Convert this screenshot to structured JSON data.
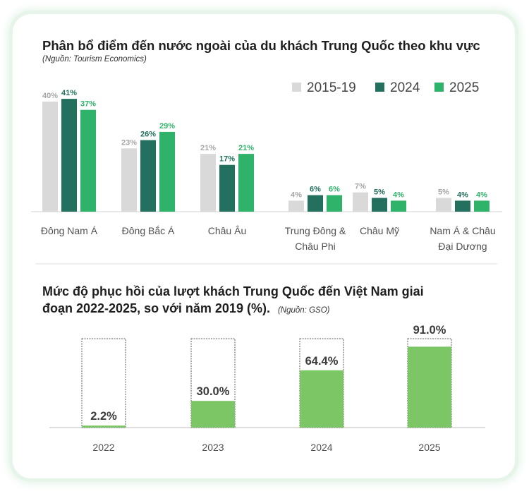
{
  "chart_data": [
    {
      "type": "bar",
      "title": "Phân bổ điểm đến nước ngoài của du khách Trung Quốc theo khu vực",
      "source": "(Nguồn: Tourism Economics)",
      "categories": [
        [
          "Đông Nam Á"
        ],
        [
          "Đông Bắc Á"
        ],
        [
          "Châu Âu"
        ],
        [
          "Trung Đông &",
          "Châu Phi"
        ],
        [
          "Châu Mỹ"
        ],
        [
          "Nam Á & Châu",
          "Đại Dương"
        ]
      ],
      "series": [
        {
          "name": "2015-19",
          "color": "#d9d9d9",
          "label_color": "#a6a6a6",
          "values": [
            40,
            23,
            21,
            4,
            7,
            5
          ],
          "labels": [
            "40%",
            "23%",
            "21%",
            "4%",
            "7%",
            "5%"
          ]
        },
        {
          "name": "2024",
          "color": "#22705d",
          "label_color": "#22705d",
          "values": [
            41,
            26,
            17,
            6,
            5,
            4
          ],
          "labels": [
            "41%",
            "26%",
            "17%",
            "6%",
            "5%",
            "4%"
          ]
        },
        {
          "name": "2025",
          "color": "#2fb36b",
          "label_color": "#2fb36b",
          "values": [
            37,
            29,
            21,
            6,
            4,
            4
          ],
          "labels": [
            "37%",
            "29%",
            "21%",
            "6%",
            "4%",
            "4%"
          ]
        }
      ],
      "ylim": [
        0,
        45
      ],
      "legend_position": "top-right"
    },
    {
      "type": "bar",
      "title_line1": "Mức độ phục hồi của lượt khách Trung Quốc đến Việt Nam giai",
      "title_line2": "đoạn 2022-2025, so với năm 2019 (%).",
      "source": "(Nguồn: GSO)",
      "categories": [
        "2022",
        "2023",
        "2024",
        "2025"
      ],
      "values": [
        2.2,
        30.0,
        64.4,
        91.0
      ],
      "labels": [
        "2.2%",
        "30.0%",
        "64.4%",
        "91.0%"
      ],
      "ylim": [
        0,
        100
      ],
      "fill_color": "#7dc665",
      "outline_color": "#5b5b5b"
    }
  ]
}
